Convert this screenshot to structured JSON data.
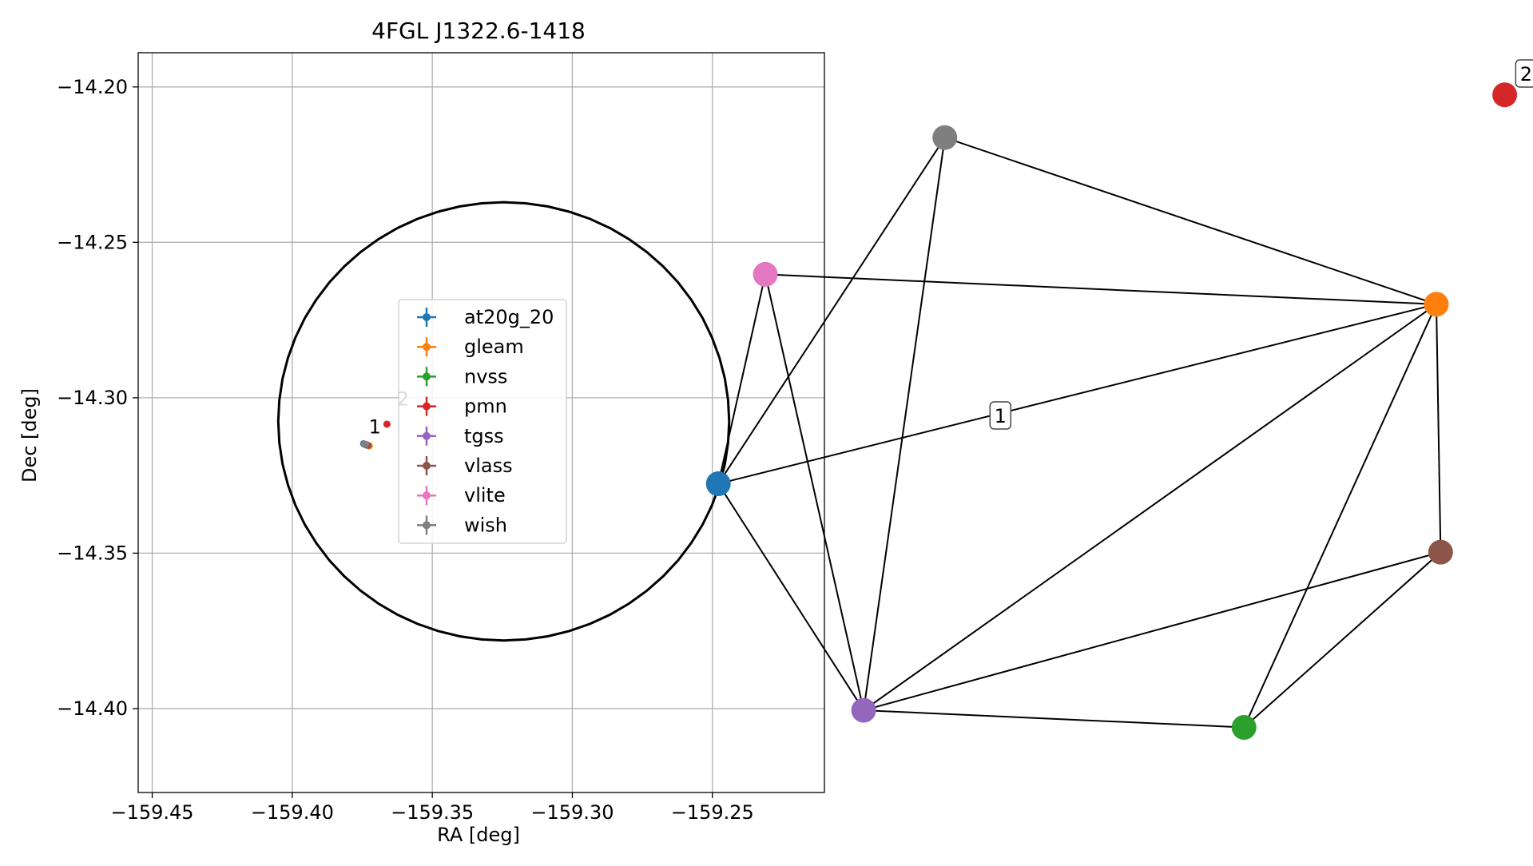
{
  "chart_data": [
    {
      "type": "scatter",
      "title": "4FGL J1322.6-1418",
      "xlabel": "RA [deg]",
      "ylabel": "Dec [deg]",
      "xlim": [
        -159.455,
        -159.21
      ],
      "ylim": [
        -14.427,
        -14.189
      ],
      "xticks": [
        -159.45,
        -159.4,
        -159.35,
        -159.3,
        -159.25
      ],
      "xtick_labels": [
        "−159.45",
        "−159.40",
        "−159.35",
        "−159.30",
        "−159.25"
      ],
      "yticks": [
        -14.2,
        -14.25,
        -14.3,
        -14.35,
        -14.4
      ],
      "ytick_labels": [
        "−14.20",
        "−14.25",
        "−14.30",
        "−14.35",
        "−14.40"
      ],
      "grid": true,
      "legend_position": "center",
      "ellipse": {
        "center": [
          -159.3245,
          -14.3076
        ],
        "radius_ra": 0.0805,
        "radius_dec": 0.0705,
        "color": "#000000"
      },
      "series": [
        {
          "name": "at20g_20",
          "color": "#1f77b4",
          "points": [
            [
              -159.3745,
              -14.3148
            ]
          ]
        },
        {
          "name": "gleam",
          "color": "#ff7f0e",
          "points": [
            [
              -159.3725,
              -14.3155
            ]
          ]
        },
        {
          "name": "nvss",
          "color": "#2ca02c",
          "points": [
            [
              -159.3735,
              -14.3152
            ]
          ]
        },
        {
          "name": "pmn",
          "color": "#d62728",
          "points": [
            [
              -159.3662,
              -14.3085
            ]
          ]
        },
        {
          "name": "tgss",
          "color": "#9467bd",
          "points": [
            [
              -159.3738,
              -14.315
            ]
          ]
        },
        {
          "name": "vlass",
          "color": "#8c564b",
          "points": [
            [
              -159.373,
              -14.3153
            ]
          ]
        },
        {
          "name": "vlite",
          "color": "#e377c2",
          "points": [
            [
              -159.374,
              -14.3149
            ]
          ]
        },
        {
          "name": "wish",
          "color": "#7f7f7f",
          "points": [
            [
              -159.3742,
              -14.315
            ]
          ]
        }
      ],
      "annotations": [
        {
          "text": "1",
          "at": [
            -159.3705,
            -14.3115
          ]
        },
        {
          "text": "2",
          "at": [
            -159.3605,
            -14.3025
          ]
        }
      ]
    },
    {
      "type": "network",
      "nodes": [
        {
          "id": "at20g_20",
          "color": "#1f77b4",
          "pos": [
            -0.88,
            -0.13
          ]
        },
        {
          "id": "gleam",
          "color": "#ff7f0e",
          "pos": [
            0.8,
            0.29
          ]
        },
        {
          "id": "nvss",
          "color": "#2ca02c",
          "pos": [
            0.35,
            -0.7
          ]
        },
        {
          "id": "pmn",
          "color": "#d62728",
          "pos": [
            0.96,
            0.78
          ]
        },
        {
          "id": "tgss",
          "color": "#9467bd",
          "pos": [
            -0.54,
            -0.66
          ]
        },
        {
          "id": "vlass",
          "color": "#8c564b",
          "pos": [
            0.81,
            -0.29
          ]
        },
        {
          "id": "vlite",
          "color": "#e377c2",
          "pos": [
            -0.77,
            0.36
          ]
        },
        {
          "id": "wish",
          "color": "#7f7f7f",
          "pos": [
            -0.35,
            0.68
          ]
        }
      ],
      "edges": [
        [
          "wish",
          "at20g_20"
        ],
        [
          "wish",
          "gleam"
        ],
        [
          "wish",
          "tgss"
        ],
        [
          "vlite",
          "gleam"
        ],
        [
          "vlite",
          "at20g_20"
        ],
        [
          "vlite",
          "tgss"
        ],
        [
          "gleam",
          "at20g_20"
        ],
        [
          "gleam",
          "tgss"
        ],
        [
          "gleam",
          "nvss"
        ],
        [
          "gleam",
          "vlass"
        ],
        [
          "at20g_20",
          "tgss"
        ],
        [
          "tgss",
          "vlass"
        ],
        [
          "tgss",
          "nvss"
        ],
        [
          "nvss",
          "vlass"
        ]
      ],
      "labels": [
        {
          "text": "1",
          "pos": [
            -0.22,
            0.03
          ]
        },
        {
          "text": "2",
          "pos": [
            1.01,
            0.83
          ]
        }
      ]
    }
  ]
}
